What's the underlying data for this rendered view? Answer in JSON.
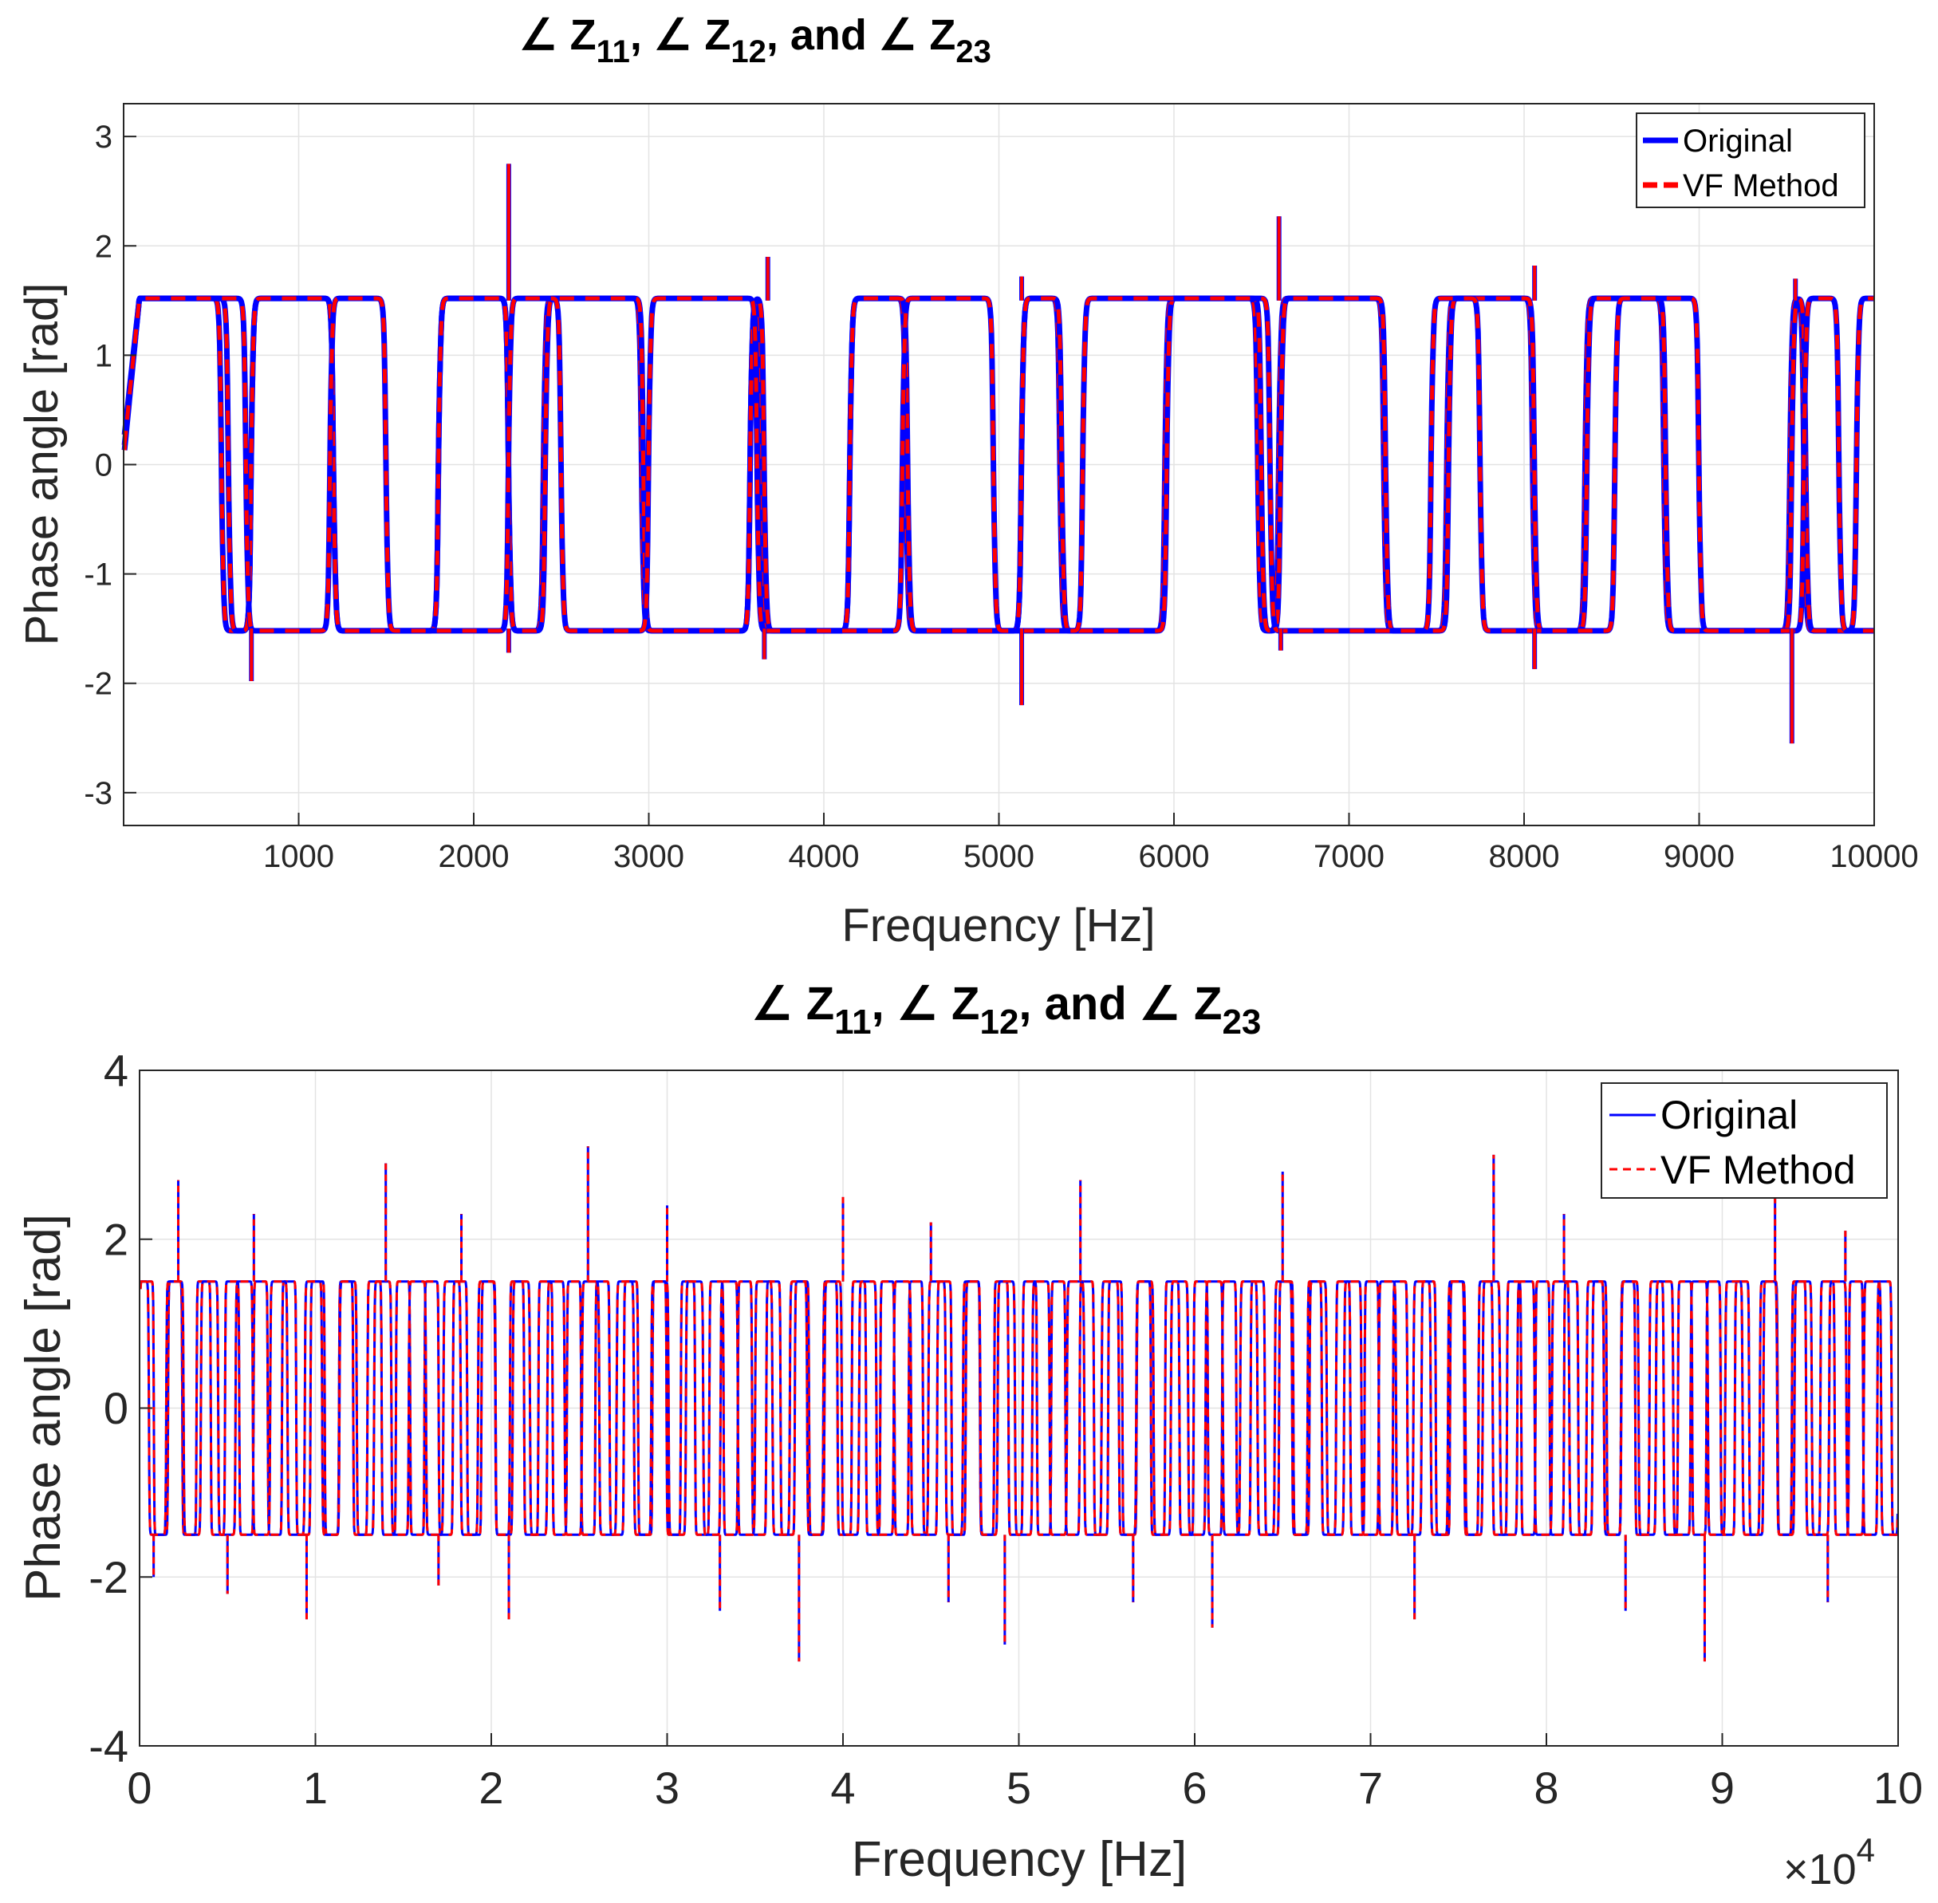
{
  "chart_data": [
    {
      "type": "line",
      "title": {
        "angle_sym": "∠",
        "z": "Z",
        "sub1": "11",
        "sub2": "12",
        "sub3": "23",
        "sep": ",",
        "and": ", and"
      },
      "xlabel": "Frequency [Hz]",
      "ylabel": "Phase angle [rad]",
      "xlim": [
        0,
        10000
      ],
      "ylim": [
        -3.3,
        3.3
      ],
      "xticks": [
        1000,
        2000,
        3000,
        4000,
        5000,
        6000,
        7000,
        8000,
        9000,
        10000
      ],
      "xtick_labels": [
        "1000",
        "2000",
        "3000",
        "4000",
        "5000",
        "6000",
        "7000",
        "8000",
        "9000",
        "10000"
      ],
      "yticks": [
        -3,
        -2,
        -1,
        0,
        1,
        2,
        3
      ],
      "ytick_labels": [
        "-3",
        "-2",
        "-1",
        "0",
        "1",
        "2",
        "3"
      ],
      "grid": true,
      "legend": {
        "placement": "top-right",
        "entries": [
          "Original",
          "VF Method"
        ]
      },
      "series": [
        {
          "name": "Original",
          "color": "#0000ff",
          "style": "solid",
          "curves": [
            {
              "label": "Z11",
              "start": 0.05,
              "transitions": [
                [
                  560,
                  -1
                ],
                [
                  730,
                  1
                ],
                [
                  1200,
                  -1
                ],
                [
                  1800,
                  1
                ],
                [
                  2200,
                  -1
                ],
                [
                  2400,
                  1
                ],
                [
                  2960,
                  -1
                ],
                [
                  3580,
                  1
                ],
                [
                  3650,
                  -1
                ],
                [
                  4150,
                  1
                ],
                [
                  4470,
                  -1
                ],
                [
                  5130,
                  1
                ],
                [
                  5350,
                  -1
                ],
                [
                  5950,
                  1
                ],
                [
                  6480,
                  -1
                ],
                [
                  6600,
                  1
                ],
                [
                  7200,
                  -1
                ],
                [
                  7560,
                  1
                ],
                [
                  8050,
                  -1
                ],
                [
                  8350,
                  1
                ],
                [
                  8800,
                  -1
                ],
                [
                  9520,
                  1
                ],
                [
                  9600,
                  -1
                ]
              ]
            },
            {
              "label": "Z12",
              "start": 0.2,
              "transitions": [
                [
                  600,
                  -1
                ],
                [
                  730,
                  1
                ],
                [
                  1200,
                  -1
                ],
                [
                  1800,
                  1
                ],
                [
                  2200,
                  -1
                ],
                [
                  2410,
                  1
                ],
                [
                  2970,
                  -1
                ],
                [
                  3580,
                  1
                ],
                [
                  3660,
                  -1
                ],
                [
                  4150,
                  1
                ],
                [
                  4480,
                  -1
                ],
                [
                  5130,
                  1
                ],
                [
                  5360,
                  -1
                ],
                [
                  5960,
                  1
                ],
                [
                  6500,
                  -1
                ],
                [
                  6610,
                  1
                ],
                [
                  7210,
                  -1
                ],
                [
                  7570,
                  1
                ],
                [
                  8060,
                  -1
                ],
                [
                  8360,
                  1
                ],
                [
                  8810,
                  -1
                ],
                [
                  9530,
                  1
                ],
                [
                  9610,
                  -1
                ]
              ]
            },
            {
              "label": "Z23",
              "start": 0.1,
              "transitions": [
                [
                  700,
                  -1
                ],
                [
                  1180,
                  1
                ],
                [
                  1500,
                  -1
                ],
                [
                  2200,
                  1
                ],
                [
                  2500,
                  -1
                ],
                [
                  3000,
                  1
                ],
                [
                  3620,
                  -1
                ],
                [
                  4450,
                  1
                ],
                [
                  4970,
                  -1
                ],
                [
                  5480,
                  1
                ],
                [
                  6550,
                  -1
                ],
                [
                  7470,
                  1
                ],
                [
                  7750,
                  -1
                ],
                [
                  8520,
                  1
                ],
                [
                  9000,
                  -1
                ],
                [
                  9600,
                  1
                ],
                [
                  9800,
                  -1
                ],
                [
                  9900,
                  1
                ]
              ]
            }
          ]
        },
        {
          "name": "VF Method",
          "color": "#ff0000",
          "style": "dashed"
        }
      ]
    },
    {
      "type": "line",
      "title": {
        "angle_sym": "∠",
        "z": "Z",
        "sub1": "11",
        "sub2": "12",
        "sub3": "23",
        "sep": ",",
        "and": ", and"
      },
      "xlabel": "Frequency [Hz]",
      "ylabel": "Phase angle [rad]",
      "x_multiplier": "×10",
      "x_multiplier_exp": "4",
      "xlim": [
        0,
        10
      ],
      "ylim": [
        -4,
        4
      ],
      "xticks": [
        0,
        1,
        2,
        3,
        4,
        5,
        6,
        7,
        8,
        9,
        10
      ],
      "xtick_labels": [
        "0",
        "1",
        "2",
        "3",
        "4",
        "5",
        "6",
        "7",
        "8",
        "9",
        "10"
      ],
      "yticks": [
        -4,
        -2,
        0,
        2,
        4
      ],
      "ytick_labels": [
        "-4",
        "-2",
        "0",
        "2",
        "4"
      ],
      "grid": true,
      "legend": {
        "placement": "top-right",
        "entries": [
          "Original",
          "VF Method"
        ]
      },
      "series": [
        {
          "name": "Original",
          "color": "#0000ff",
          "style": "solid"
        },
        {
          "name": "VF Method",
          "color": "#ff0000",
          "style": "dashed"
        }
      ],
      "spikes_up": [
        [
          0.22,
          2.7
        ],
        [
          0.65,
          2.3
        ],
        [
          1.4,
          2.9
        ],
        [
          1.83,
          2.3
        ],
        [
          2.55,
          3.1
        ],
        [
          3.0,
          2.4
        ],
        [
          4.0,
          2.5
        ],
        [
          4.5,
          2.2
        ],
        [
          5.35,
          2.7
        ],
        [
          6.5,
          2.8
        ],
        [
          7.7,
          3.0
        ],
        [
          8.1,
          2.3
        ],
        [
          9.3,
          2.5
        ],
        [
          9.7,
          2.1
        ]
      ],
      "spikes_down": [
        [
          0.08,
          -2.0
        ],
        [
          0.5,
          -2.2
        ],
        [
          0.95,
          -2.5
        ],
        [
          1.7,
          -2.1
        ],
        [
          2.1,
          -2.5
        ],
        [
          3.3,
          -2.4
        ],
        [
          3.75,
          -3.0
        ],
        [
          4.6,
          -2.3
        ],
        [
          4.92,
          -2.8
        ],
        [
          5.65,
          -2.3
        ],
        [
          6.1,
          -2.6
        ],
        [
          7.25,
          -2.5
        ],
        [
          8.45,
          -2.4
        ],
        [
          8.9,
          -3.0
        ],
        [
          9.6,
          -2.3
        ]
      ]
    }
  ]
}
